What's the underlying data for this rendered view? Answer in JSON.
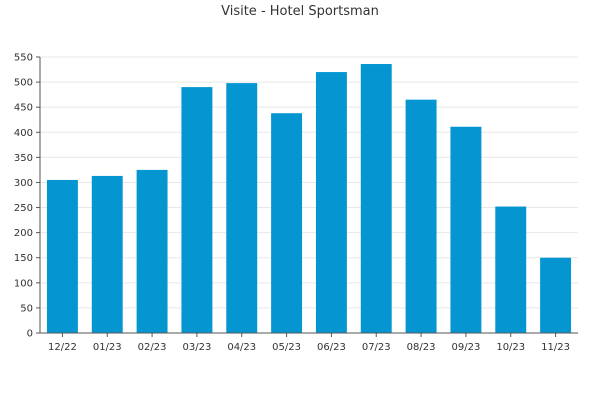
{
  "chart_data": {
    "type": "bar",
    "title": "Visite - Hotel Sportsman",
    "xlabel": "",
    "ylabel": "",
    "categories": [
      "12/22",
      "01/23",
      "02/23",
      "03/23",
      "04/23",
      "05/23",
      "06/23",
      "07/23",
      "08/23",
      "09/23",
      "10/23",
      "11/23"
    ],
    "values": [
      305,
      313,
      325,
      490,
      498,
      438,
      520,
      536,
      465,
      411,
      252,
      150
    ],
    "ylim": [
      0,
      550
    ],
    "yticks": [
      0,
      50,
      100,
      150,
      200,
      250,
      300,
      350,
      400,
      450,
      500,
      550
    ],
    "grid": true,
    "legend": "none",
    "colors": {
      "bar": "#0596D2",
      "grid": "#E8E8E8",
      "axis": "#555555",
      "text": "#333333"
    }
  }
}
